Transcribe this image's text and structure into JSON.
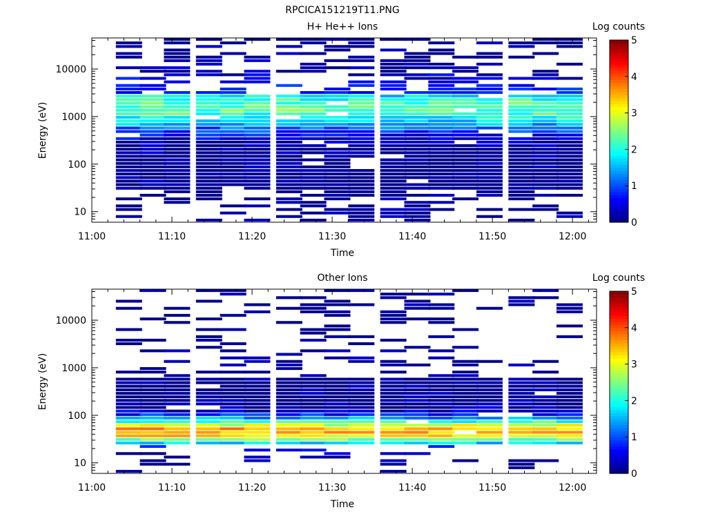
{
  "figure_title": "RPCICA151219T11.PNG",
  "chart_data": [
    {
      "type": "heatmap",
      "title": "H+ He++ Ions",
      "xlabel": "Time",
      "ylabel": "Energy (eV)",
      "y_scale": "log",
      "ylim": [
        6,
        45000
      ],
      "xlim": [
        "11:00",
        "12:03"
      ],
      "x_ticks": [
        "11:00",
        "11:10",
        "11:20",
        "11:30",
        "11:40",
        "11:50",
        "12:00"
      ],
      "y_ticks": [
        "10",
        "100",
        "1000",
        "10000"
      ],
      "colorbar": {
        "label": "Log counts",
        "range": [
          0,
          5
        ],
        "ticks": [
          "0",
          "1",
          "2",
          "3",
          "4",
          "5"
        ]
      },
      "time_columns": [
        "11:03",
        "11:06",
        "11:09",
        "11:13",
        "11:16",
        "11:19",
        "11:23",
        "11:26",
        "11:29",
        "11:32",
        "11:36",
        "11:39",
        "11:42",
        "11:45",
        "11:48",
        "11:52",
        "11:55",
        "11:58"
      ],
      "profile": {
        "band_low_ev": 30,
        "band_high_ev": 3000,
        "peak_ev": 1500,
        "peak_log_counts": 2.3
      },
      "fill_fraction": 0.82,
      "grid": false
    },
    {
      "type": "heatmap",
      "title": "Other Ions",
      "xlabel": "Time",
      "ylabel": "Energy (eV)",
      "y_scale": "log",
      "ylim": [
        6,
        45000
      ],
      "xlim": [
        "11:00",
        "12:03"
      ],
      "x_ticks": [
        "11:00",
        "11:10",
        "11:20",
        "11:30",
        "11:40",
        "11:50",
        "12:00"
      ],
      "y_ticks": [
        "10",
        "100",
        "1000",
        "10000"
      ],
      "colorbar": {
        "label": "Log counts",
        "range": [
          0,
          5
        ],
        "ticks": [
          "0",
          "1",
          "2",
          "3",
          "4",
          "5"
        ]
      },
      "time_columns": [
        "11:03",
        "11:06",
        "11:09",
        "11:13",
        "11:16",
        "11:19",
        "11:23",
        "11:26",
        "11:29",
        "11:32",
        "11:36",
        "11:39",
        "11:42",
        "11:45",
        "11:48",
        "11:52",
        "11:55",
        "11:58"
      ],
      "profile": {
        "band_low_ev": 25,
        "band_high_ev": 600,
        "peak_ev": 45,
        "peak_log_counts": 3.6
      },
      "fill_fraction": 0.55,
      "grid": false
    }
  ]
}
